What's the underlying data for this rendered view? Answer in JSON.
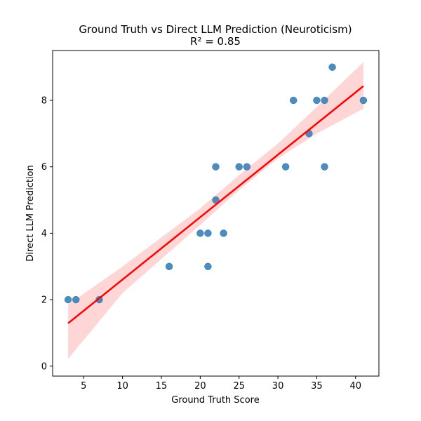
{
  "chart_data": {
    "type": "scatter",
    "title": "Ground Truth vs Direct LLM Prediction (Neuroticism)",
    "subtitle": "R² = 0.85",
    "xlabel": "Ground Truth Score",
    "ylabel": "Direct LLM Prediction",
    "xlim": [
      1,
      43
    ],
    "ylim": [
      -0.3,
      9.5
    ],
    "xticks": [
      5,
      10,
      15,
      20,
      25,
      30,
      35,
      40
    ],
    "yticks": [
      0,
      2,
      4,
      6,
      8
    ],
    "grid": false,
    "legend": "none",
    "points": {
      "color": "#3a7fb5",
      "x": [
        3,
        4,
        7,
        16,
        20,
        21,
        21,
        22,
        22,
        23,
        25,
        26,
        31,
        32,
        34,
        35,
        36,
        36,
        37,
        41
      ],
      "y": [
        2,
        2,
        2,
        3,
        4,
        4,
        3,
        6,
        5,
        4,
        6,
        6,
        6,
        8,
        7,
        8,
        8,
        6,
        9,
        8
      ]
    },
    "regression": {
      "color": "#ff0000",
      "x": [
        3,
        41
      ],
      "y": [
        1.29,
        8.43
      ],
      "ci_color": "#ffcccc",
      "ci_lower": [
        [
          3,
          0.22
        ],
        [
          10,
          2.2
        ],
        [
          20,
          4.25
        ],
        [
          25,
          5.3
        ],
        [
          30,
          6.25
        ],
        [
          35,
          7.0
        ],
        [
          41,
          7.75
        ]
      ],
      "ci_upper": [
        [
          3,
          1.85
        ],
        [
          10,
          3.0
        ],
        [
          20,
          4.75
        ],
        [
          25,
          5.75
        ],
        [
          30,
          6.7
        ],
        [
          35,
          7.8
        ],
        [
          41,
          9.15
        ]
      ]
    }
  }
}
